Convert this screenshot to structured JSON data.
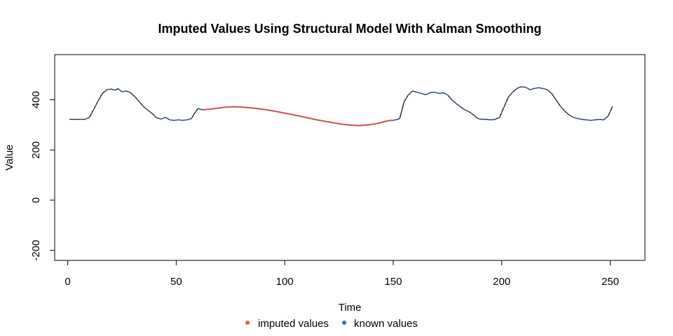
{
  "chart_data": {
    "type": "line",
    "title": "Imputed Values Using Structural Model With Kalman Smoothing",
    "xlabel": "Time",
    "ylabel": "Value",
    "xlim": [
      -6,
      266
    ],
    "ylim": [
      -240,
      580
    ],
    "x_ticks": [
      0,
      50,
      100,
      150,
      200,
      250
    ],
    "y_ticks": [
      -200,
      0,
      200,
      400
    ],
    "grid": false,
    "legend_position": "bottom-center",
    "colors": {
      "imputed": "#e8585c",
      "known_point": "#3b6ea8",
      "line": "#000000"
    },
    "known_segments": [
      {
        "x": [
          1,
          5,
          8,
          10,
          12,
          14,
          16,
          18,
          20,
          22,
          23,
          25,
          27,
          29,
          31,
          33,
          35,
          37,
          39,
          41,
          43,
          45,
          47,
          49,
          51,
          53,
          55,
          57,
          58,
          60,
          62
        ],
        "y": [
          322,
          322,
          322,
          330,
          362,
          395,
          425,
          440,
          443,
          438,
          445,
          432,
          435,
          428,
          412,
          392,
          372,
          358,
          345,
          328,
          323,
          330,
          320,
          318,
          320,
          318,
          320,
          325,
          340,
          365,
          360
        ]
      },
      {
        "x": [
          150,
          152,
          153,
          155,
          157,
          159,
          161,
          163,
          165,
          167,
          169,
          171,
          173,
          175,
          177,
          179,
          181,
          183,
          185,
          187,
          189,
          191,
          193,
          195,
          197,
          199,
          201,
          203,
          205,
          207,
          209,
          211,
          213,
          215,
          217,
          219,
          221,
          223,
          225,
          227,
          229,
          231,
          233,
          235,
          237,
          239,
          241,
          243,
          245,
          247,
          249,
          251
        ],
        "y": [
          318,
          322,
          325,
          392,
          420,
          435,
          430,
          425,
          420,
          428,
          430,
          425,
          428,
          420,
          400,
          385,
          372,
          360,
          352,
          340,
          325,
          322,
          322,
          320,
          322,
          330,
          370,
          410,
          430,
          445,
          452,
          450,
          440,
          445,
          448,
          445,
          440,
          425,
          400,
          375,
          355,
          340,
          330,
          325,
          322,
          320,
          318,
          320,
          322,
          320,
          335,
          372
        ]
      }
    ],
    "imputed": {
      "x_start": 63,
      "x_end": 149,
      "anchor_x": [
        63,
        76,
        90,
        104,
        118,
        132,
        141,
        149
      ],
      "anchor_y": [
        361,
        372,
        362,
        340,
        315,
        298,
        303,
        318
      ]
    },
    "legend": [
      {
        "label": "imputed values",
        "color": "#e8585c"
      },
      {
        "label": "known values",
        "color": "#3b6ea8"
      }
    ]
  }
}
